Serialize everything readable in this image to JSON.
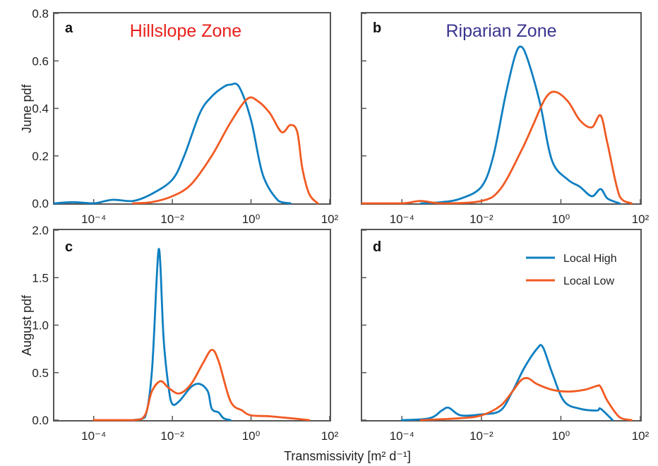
{
  "colors": {
    "local_high": "#0f7fc1",
    "local_low": "#f15a22",
    "hillslope_title": "#e8201b",
    "riparian_title": "#3a3590"
  },
  "figure": {
    "xlabel": "Transmissivity [m² d⁻¹]",
    "ylabel_top": "June pdf",
    "ylabel_bottom": "August pdf"
  },
  "legend": {
    "entries": [
      "Local High",
      "Local Low"
    ],
    "placement": "upper-right of panel d"
  },
  "chart_data": [
    {
      "panel": "a",
      "title": "Hillslope Zone",
      "type": "line",
      "xscale": "log",
      "xlim": [
        1e-05,
        100
      ],
      "ylim": [
        0,
        0.8
      ],
      "xticks": [
        "10⁻⁴",
        "10⁻²",
        "10⁰",
        "10²"
      ],
      "yticks": [
        "0.0",
        "0.2",
        "0.4",
        "0.6",
        "0.8"
      ],
      "series": [
        {
          "name": "Local High",
          "color": "#0f7fc1",
          "x": [
            1e-05,
            3e-05,
            0.0001,
            0.0003,
            0.001,
            0.003,
            0.01,
            0.02,
            0.05,
            0.1,
            0.2,
            0.3,
            0.5,
            1,
            2,
            5,
            10
          ],
          "y": [
            0.0,
            0.005,
            0.0,
            0.015,
            0.01,
            0.04,
            0.1,
            0.2,
            0.38,
            0.45,
            0.49,
            0.5,
            0.49,
            0.35,
            0.12,
            0.01,
            0.0
          ]
        },
        {
          "name": "Local Low",
          "color": "#f15a22",
          "x": [
            0.001,
            0.003,
            0.01,
            0.03,
            0.1,
            0.3,
            0.8,
            1.5,
            3,
            6,
            10,
            15,
            20,
            30,
            50
          ],
          "y": [
            0.0,
            0.005,
            0.03,
            0.08,
            0.2,
            0.34,
            0.44,
            0.43,
            0.38,
            0.3,
            0.33,
            0.3,
            0.15,
            0.04,
            0.0
          ]
        }
      ]
    },
    {
      "panel": "b",
      "title": "Riparian Zone",
      "type": "line",
      "xscale": "log",
      "xlim": [
        1e-05,
        100
      ],
      "ylim": [
        0,
        0.8
      ],
      "xticks": [
        "10⁻⁴",
        "10⁻²",
        "10⁰",
        "10²"
      ],
      "yticks": [],
      "series": [
        {
          "name": "Local High",
          "color": "#0f7fc1",
          "x": [
            0.0003,
            0.001,
            0.003,
            0.01,
            0.02,
            0.04,
            0.07,
            0.1,
            0.15,
            0.3,
            0.6,
            1.5,
            3,
            6,
            10,
            15,
            30
          ],
          "y": [
            0.0,
            0.005,
            0.02,
            0.07,
            0.2,
            0.45,
            0.62,
            0.66,
            0.6,
            0.42,
            0.18,
            0.1,
            0.07,
            0.03,
            0.06,
            0.02,
            0.0
          ]
        },
        {
          "name": "Local Low",
          "color": "#f15a22",
          "x": [
            1e-05,
            0.0001,
            0.0003,
            0.001,
            0.01,
            0.03,
            0.1,
            0.2,
            0.4,
            0.7,
            1.5,
            3,
            6,
            10,
            15,
            30,
            60
          ],
          "y": [
            0.0,
            0.0,
            0.01,
            0.0,
            0.01,
            0.06,
            0.22,
            0.33,
            0.44,
            0.47,
            0.43,
            0.35,
            0.32,
            0.37,
            0.25,
            0.03,
            0.0
          ]
        }
      ]
    },
    {
      "panel": "c",
      "type": "line",
      "xscale": "log",
      "xlim": [
        1e-05,
        100
      ],
      "ylim": [
        0,
        2.0
      ],
      "xticks": [
        "10⁻⁴",
        "10⁻²",
        "10⁰",
        "10²"
      ],
      "yticks": [
        "0.0",
        "0.5",
        "1.0",
        "1.5",
        "2.0"
      ],
      "series": [
        {
          "name": "Local High",
          "color": "#0f7fc1",
          "x": [
            0.001,
            0.002,
            0.003,
            0.004,
            0.0045,
            0.005,
            0.006,
            0.008,
            0.01,
            0.015,
            0.03,
            0.05,
            0.08,
            0.1,
            0.15,
            0.2,
            0.3
          ],
          "y": [
            0.0,
            0.03,
            0.5,
            1.5,
            1.8,
            1.6,
            0.85,
            0.35,
            0.17,
            0.2,
            0.35,
            0.38,
            0.3,
            0.12,
            0.08,
            0.02,
            0.0
          ]
        },
        {
          "name": "Local Low",
          "color": "#f15a22",
          "x": [
            0.0001,
            0.001,
            0.002,
            0.003,
            0.005,
            0.008,
            0.015,
            0.03,
            0.06,
            0.1,
            0.15,
            0.3,
            0.6,
            1,
            3,
            10,
            30
          ],
          "y": [
            0.0,
            0.0,
            0.05,
            0.3,
            0.41,
            0.34,
            0.28,
            0.38,
            0.6,
            0.74,
            0.62,
            0.2,
            0.1,
            0.05,
            0.04,
            0.02,
            0.0
          ]
        }
      ]
    },
    {
      "panel": "d",
      "type": "line",
      "xscale": "log",
      "xlim": [
        1e-05,
        100
      ],
      "ylim": [
        0,
        2.0
      ],
      "xticks": [
        "10⁻⁴",
        "10⁻²",
        "10⁰",
        "10²"
      ],
      "yticks": [],
      "series": [
        {
          "name": "Local High",
          "color": "#0f7fc1",
          "x": [
            0.0001,
            0.0005,
            0.001,
            0.0015,
            0.003,
            0.01,
            0.03,
            0.06,
            0.12,
            0.25,
            0.35,
            0.6,
            1.2,
            3,
            8,
            10,
            20
          ],
          "y": [
            0.0,
            0.02,
            0.1,
            0.13,
            0.05,
            0.06,
            0.1,
            0.3,
            0.55,
            0.75,
            0.77,
            0.5,
            0.2,
            0.12,
            0.1,
            0.12,
            0.0
          ]
        },
        {
          "name": "Local Low",
          "color": "#f15a22",
          "x": [
            0.0003,
            0.003,
            0.01,
            0.03,
            0.06,
            0.1,
            0.15,
            0.25,
            0.6,
            1.5,
            4,
            8,
            10,
            15,
            30,
            60
          ],
          "y": [
            0.0,
            0.02,
            0.05,
            0.15,
            0.3,
            0.42,
            0.44,
            0.38,
            0.32,
            0.3,
            0.32,
            0.36,
            0.35,
            0.2,
            0.03,
            0.0
          ]
        }
      ]
    }
  ]
}
